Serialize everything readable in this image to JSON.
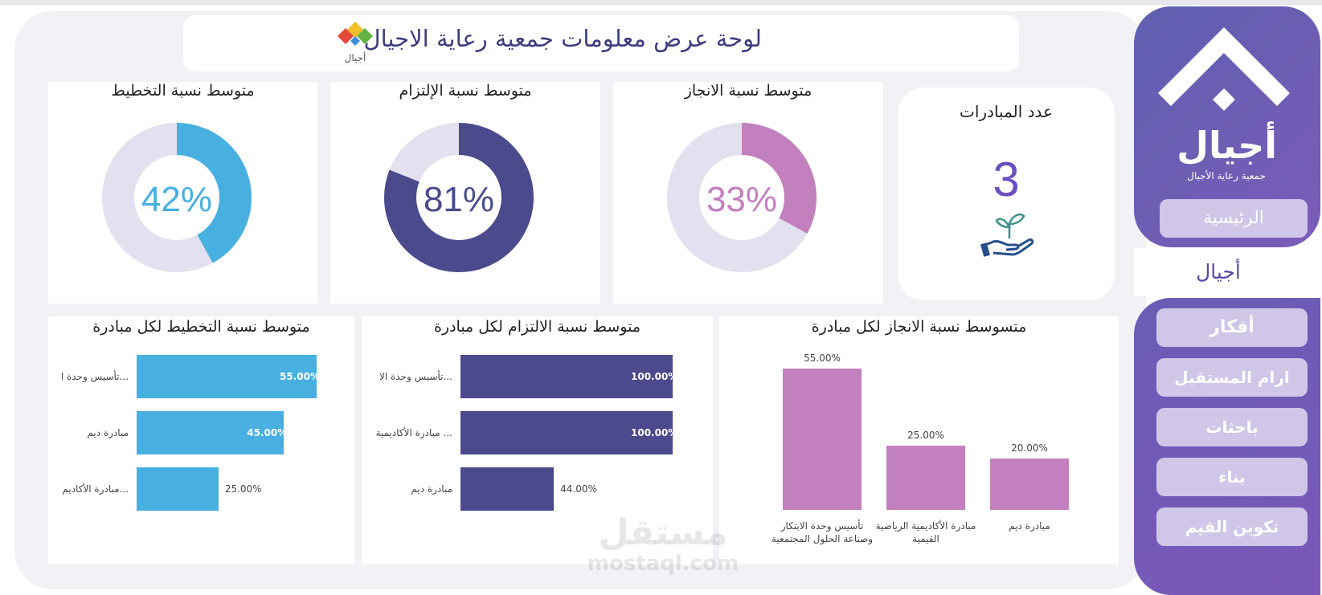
{
  "header": {
    "title": "لوحة عرض معلومات جمعية رعاية الاجيال",
    "logo_text": "أجيال"
  },
  "kpis": [
    {
      "title": "متوسط نسبة التخطيط",
      "value_label": "42%",
      "value": 42,
      "color": "#47b0e0",
      "track": "#e3e0ef"
    },
    {
      "title": "متوسط نسبة الإلتزام",
      "value_label": "81%",
      "value": 81,
      "color": "#4a4a8c",
      "track": "#e3e0ef"
    },
    {
      "title": "متوسط نسبة الانجاز",
      "value_label": "33%",
      "value": 33,
      "color": "#c380bf",
      "track": "#e3e0ef"
    }
  ],
  "initiatives_count": {
    "title": "عدد المبادرات",
    "value": "3",
    "icon": "hand-plant-icon"
  },
  "chart_data": [
    {
      "type": "bar",
      "orientation": "horizontal",
      "title": "متوسط نسبة التخطيط لكل مبادرة",
      "categories": [
        "...تأسيس وحدة ا",
        "مبادرة ديم",
        "...مبادرة الأكاديم"
      ],
      "values": [
        55,
        45,
        25
      ],
      "value_labels": [
        "55.00%",
        "45.00%",
        "25.00%"
      ],
      "color": "#47b0e0",
      "xlim": [
        0,
        55
      ]
    },
    {
      "type": "bar",
      "orientation": "horizontal",
      "title": "متوسط نسبة الالتزام لكل مبادرة",
      "categories": [
        "...تأسيس وحدة الا",
        "... مبادرة الأكاديمية",
        "مبادرة ديم"
      ],
      "values": [
        100,
        100,
        44
      ],
      "value_labels": [
        "100.00%",
        "100.00%",
        "44.00%"
      ],
      "color": "#4a4a8c",
      "xlim": [
        0,
        100
      ]
    },
    {
      "type": "bar",
      "orientation": "vertical",
      "title": "متسوسط نسبة الانجاز لكل مبادرة",
      "categories": [
        "تأسيس وحدة الابتكار وصناعة الحلول المجتمعية",
        "مبادرة الأكاديمية الرياضية القيمية",
        "مبادرة ديم"
      ],
      "values": [
        55,
        25,
        20
      ],
      "value_labels": [
        "55.00%",
        "25.00%",
        "20.00%"
      ],
      "color": "#c380bf",
      "ylim": [
        0,
        55
      ]
    }
  ],
  "sidebar": {
    "brand_name": "أجيال",
    "brand_subtitle": "جمعية رعاية الأجيال",
    "home": "الرئيسية",
    "active": "أجيال",
    "items": [
      "أفكار",
      "ارام المستقبل",
      "باحثات",
      "بناء",
      "تكوين القيم"
    ]
  },
  "watermark": {
    "arabic": "مستقل",
    "latin": "mostaql.com"
  }
}
